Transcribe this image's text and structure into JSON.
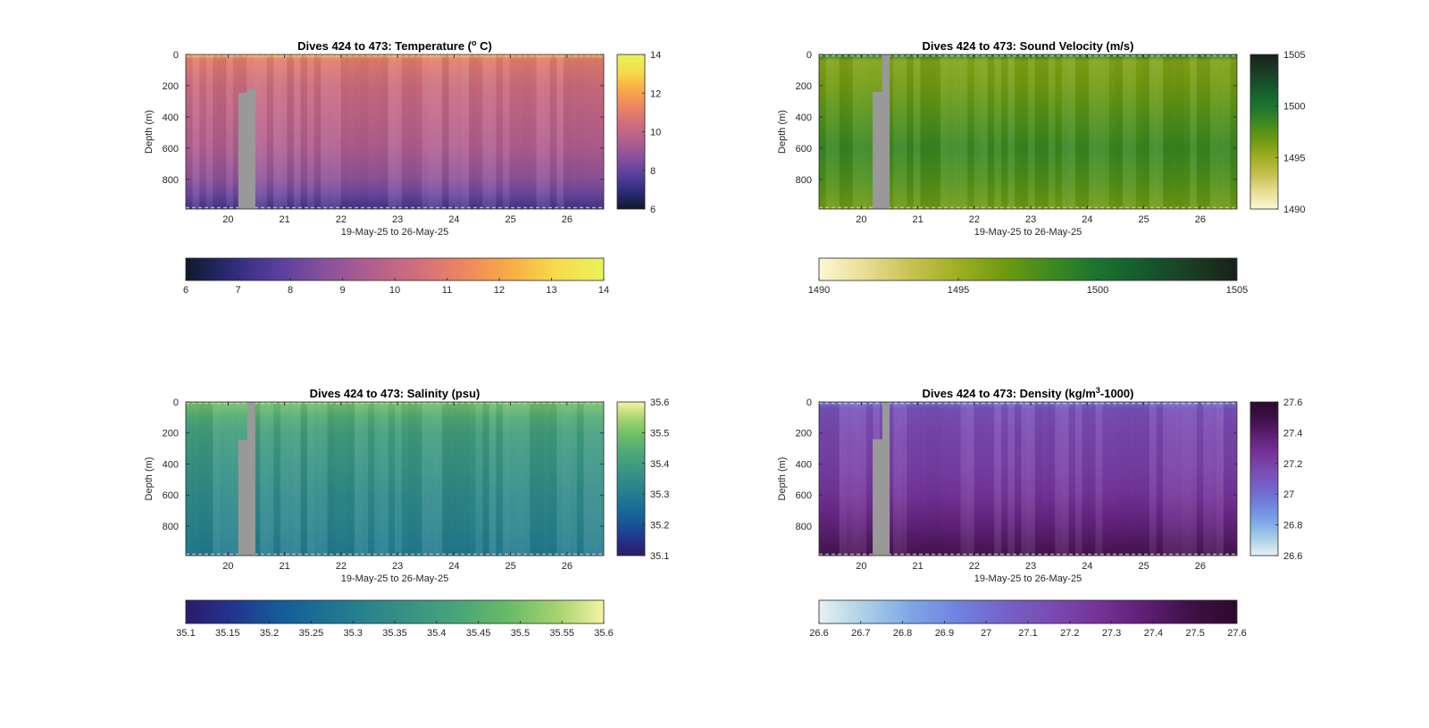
{
  "figure": {
    "background": "#ffffff",
    "no_data_color": "#999999"
  },
  "chart_data": [
    {
      "type": "heatmap",
      "title": "Dives 424 to 473: Temperature (",
      "title_sup": "o",
      "title_after": " C)",
      "xlabel": "19-May-25 to 26-May-25",
      "ylabel": "Depth (m)",
      "xlim": [
        19.25,
        26.65
      ],
      "xticks": [
        20,
        21,
        22,
        23,
        24,
        25,
        26
      ],
      "ylim": [
        0,
        990
      ],
      "yticks": [
        0,
        200,
        400,
        600,
        800
      ],
      "y_reversed": true,
      "gap": {
        "x_start": 20.18,
        "x_end": 20.48,
        "partial_x": 20.34,
        "partial_top_depth": 220,
        "full_top_depth": 245
      },
      "colorbar_side": {
        "min": 6,
        "max": 14,
        "ticks": [
          6,
          8,
          10,
          12,
          14
        ]
      },
      "colorbar_bottom": {
        "min": 6,
        "max": 14,
        "ticks": [
          6,
          7,
          8,
          9,
          10,
          11,
          12,
          13,
          14
        ]
      },
      "colormap": [
        "#0d1a2b",
        "#2e2b7a",
        "#5a3f9e",
        "#88519c",
        "#b25f8e",
        "#d16e7c",
        "#ee8660",
        "#f9ad45",
        "#f6dc4c",
        "#e9f35a"
      ],
      "profile": [
        {
          "depth": 0,
          "value": 12.4
        },
        {
          "depth": 30,
          "value": 11.0
        },
        {
          "depth": 200,
          "value": 10.3
        },
        {
          "depth": 400,
          "value": 9.9
        },
        {
          "depth": 600,
          "value": 9.5
        },
        {
          "depth": 800,
          "value": 8.8
        },
        {
          "depth": 900,
          "value": 8.1
        },
        {
          "depth": 990,
          "value": 7.3
        }
      ]
    },
    {
      "type": "heatmap",
      "title": "Dives 424 to 473: Sound Velocity (m/s)",
      "xlabel": "19-May-25 to 26-May-25",
      "ylabel": "Depth (m)",
      "xlim": [
        19.25,
        26.65
      ],
      "xticks": [
        20,
        21,
        22,
        23,
        24,
        25,
        26
      ],
      "ylim": [
        0,
        990
      ],
      "yticks": [
        0,
        200,
        400,
        600,
        800
      ],
      "y_reversed": true,
      "gap": {
        "x_start": 20.2,
        "x_end": 20.5,
        "partial_x": 20.37,
        "partial_top_depth": 0,
        "full_top_depth": 240
      },
      "colorbar_side": {
        "min": 1490,
        "max": 1505,
        "ticks": [
          1490,
          1495,
          1500,
          1505
        ]
      },
      "colorbar_bottom": {
        "min": 1490,
        "max": 1505,
        "ticks": [
          1490,
          1495,
          1500,
          1505
        ]
      },
      "colormap": [
        "#fdf8d6",
        "#e8dd92",
        "#c6c150",
        "#9fae22",
        "#6f9a10",
        "#3d8a1f",
        "#1a7430",
        "#15592d",
        "#1b3d24",
        "#172119"
      ],
      "profile": [
        {
          "depth": 0,
          "value": 1499.6
        },
        {
          "depth": 40,
          "value": 1496.0
        },
        {
          "depth": 200,
          "value": 1496.6
        },
        {
          "depth": 400,
          "value": 1497.6
        },
        {
          "depth": 600,
          "value": 1498.6
        },
        {
          "depth": 800,
          "value": 1497.8
        },
        {
          "depth": 990,
          "value": 1496.6
        }
      ]
    },
    {
      "type": "heatmap",
      "title": "Dives 424 to 473: Salinity (psu)",
      "xlabel": "19-May-25 to 26-May-25",
      "ylabel": "Depth (m)",
      "xlim": [
        19.25,
        26.65
      ],
      "xticks": [
        20,
        21,
        22,
        23,
        24,
        25,
        26
      ],
      "ylim": [
        0,
        990
      ],
      "yticks": [
        0,
        200,
        400,
        600,
        800
      ],
      "y_reversed": true,
      "gap": {
        "x_start": 20.18,
        "x_end": 20.48,
        "partial_x": 20.34,
        "partial_top_depth": 0,
        "full_top_depth": 245
      },
      "colorbar_side": {
        "min": 35.1,
        "max": 35.6,
        "ticks": [
          35.1,
          35.2,
          35.3,
          35.4,
          35.5,
          35.6
        ]
      },
      "colorbar_bottom": {
        "min": 35.1,
        "max": 35.6,
        "ticks": [
          35.1,
          35.15,
          35.2,
          35.25,
          35.3,
          35.35,
          35.4,
          35.45,
          35.5,
          35.55,
          35.6
        ]
      },
      "colormap": [
        "#2a1b6b",
        "#23348f",
        "#155a98",
        "#1b7294",
        "#2b858c",
        "#3a9683",
        "#4ca877",
        "#6bbc67",
        "#a4d36f",
        "#f6f3a2"
      ],
      "profile": [
        {
          "depth": 0,
          "value": 35.5
        },
        {
          "depth": 100,
          "value": 35.44
        },
        {
          "depth": 200,
          "value": 35.4
        },
        {
          "depth": 400,
          "value": 35.37
        },
        {
          "depth": 600,
          "value": 35.34
        },
        {
          "depth": 800,
          "value": 35.32
        },
        {
          "depth": 990,
          "value": 35.29
        }
      ]
    },
    {
      "type": "heatmap",
      "title": "Dives 424 to 473: Density (kg/m",
      "title_sup": "3",
      "title_after": "-1000)",
      "xlabel": "19-May-25 to 26-May-25",
      "ylabel": "Depth (m)",
      "xlim": [
        19.25,
        26.65
      ],
      "xticks": [
        20,
        21,
        22,
        23,
        24,
        25,
        26
      ],
      "ylim": [
        0,
        990
      ],
      "yticks": [
        0,
        200,
        400,
        600,
        800
      ],
      "y_reversed": true,
      "gap": {
        "x_start": 20.2,
        "x_end": 20.5,
        "partial_x": 20.37,
        "partial_top_depth": 0,
        "full_top_depth": 240
      },
      "colorbar_side": {
        "min": 26.6,
        "max": 27.6,
        "ticks": [
          26.6,
          26.8,
          27,
          27.2,
          27.4,
          27.6
        ],
        "tick_labels": [
          "26.6",
          "26.8",
          "27",
          "27.2",
          "27.4",
          "27.6"
        ]
      },
      "colorbar_bottom": {
        "min": 26.6,
        "max": 27.6,
        "ticks": [
          26.6,
          26.7,
          26.8,
          26.9,
          27,
          27.1,
          27.2,
          27.3,
          27.4,
          27.5,
          27.6
        ],
        "tick_labels": [
          "26.6",
          "26.7",
          "26.8",
          "26.9",
          "27",
          "27.1",
          "27.2",
          "27.3",
          "27.4",
          "27.5",
          "27.6"
        ]
      },
      "colormap": [
        "#e8f1f3",
        "#a9cfe6",
        "#7ea6e6",
        "#6f82df",
        "#7562c9",
        "#7a4bb1",
        "#753399",
        "#5e1f75",
        "#401048",
        "#2b0a2c"
      ],
      "profile": [
        {
          "depth": 0,
          "value": 26.95
        },
        {
          "depth": 40,
          "value": 27.12
        },
        {
          "depth": 200,
          "value": 27.17
        },
        {
          "depth": 400,
          "value": 27.2
        },
        {
          "depth": 600,
          "value": 27.26
        },
        {
          "depth": 800,
          "value": 27.36
        },
        {
          "depth": 990,
          "value": 27.47
        }
      ]
    }
  ]
}
